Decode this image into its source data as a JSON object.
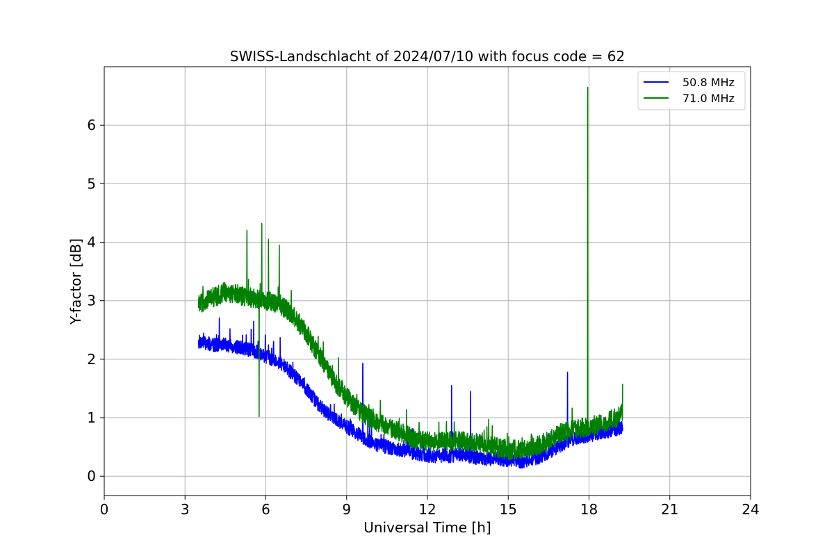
{
  "chart_data": {
    "type": "line",
    "title": "SWISS-Landschlacht of 2024/07/10 with focus code = 62",
    "xlabel": "Universal Time [h]",
    "ylabel": "Y-factor [dB]",
    "xlim": [
      0,
      24
    ],
    "ylim": [
      -0.33,
      7.0
    ],
    "x_ticks": [
      0,
      3,
      6,
      9,
      12,
      15,
      18,
      21,
      24
    ],
    "y_ticks": [
      0,
      1,
      2,
      3,
      4,
      5,
      6
    ],
    "grid": true,
    "legend_position": "top-right",
    "series": [
      {
        "name": "50.8 MHz",
        "color": "#0000ff",
        "x": [
          3.5,
          4.0,
          4.5,
          5.0,
          5.5,
          5.8,
          6.0,
          6.5,
          7.0,
          7.5,
          8.0,
          8.5,
          9.0,
          9.5,
          10.0,
          10.5,
          11.0,
          11.5,
          12.0,
          12.5,
          13.0,
          13.5,
          14.0,
          14.5,
          15.0,
          15.5,
          16.0,
          16.5,
          17.0,
          17.5,
          18.0,
          18.5,
          19.0,
          19.25
        ],
        "y": [
          2.3,
          2.25,
          2.25,
          2.2,
          2.15,
          2.1,
          2.05,
          1.95,
          1.75,
          1.5,
          1.2,
          1.0,
          0.85,
          0.7,
          0.55,
          0.5,
          0.45,
          0.4,
          0.35,
          0.35,
          0.35,
          0.35,
          0.3,
          0.3,
          0.28,
          0.25,
          0.3,
          0.4,
          0.55,
          0.65,
          0.7,
          0.75,
          0.8,
          0.85
        ],
        "spikes": [
          {
            "x": 5.55,
            "y": 2.65
          },
          {
            "x": 9.6,
            "y": 1.93
          },
          {
            "x": 12.9,
            "y": 1.55
          },
          {
            "x": 13.6,
            "y": 1.45
          },
          {
            "x": 17.2,
            "y": 1.78
          }
        ]
      },
      {
        "name": "71.0 MHz",
        "color": "#008000",
        "x": [
          3.5,
          4.0,
          4.5,
          5.0,
          5.5,
          6.0,
          6.5,
          7.0,
          7.5,
          8.0,
          8.5,
          9.0,
          9.5,
          10.0,
          10.5,
          11.0,
          11.5,
          12.0,
          12.5,
          13.0,
          13.5,
          14.0,
          14.5,
          15.0,
          15.5,
          16.0,
          16.5,
          17.0,
          17.5,
          18.0,
          18.5,
          19.0,
          19.25
        ],
        "y": [
          2.95,
          3.05,
          3.15,
          3.1,
          3.05,
          3.0,
          2.95,
          2.75,
          2.45,
          2.05,
          1.65,
          1.35,
          1.1,
          0.95,
          0.85,
          0.75,
          0.65,
          0.6,
          0.6,
          0.6,
          0.6,
          0.55,
          0.5,
          0.45,
          0.45,
          0.5,
          0.6,
          0.75,
          0.8,
          0.85,
          0.9,
          1.0,
          1.1
        ],
        "spikes": [
          {
            "x": 5.3,
            "y": 4.2
          },
          {
            "x": 5.75,
            "y": 1.02
          },
          {
            "x": 5.85,
            "y": 4.32
          },
          {
            "x": 6.1,
            "y": 4.05
          },
          {
            "x": 6.5,
            "y": 3.95
          },
          {
            "x": 17.95,
            "y": 6.65
          },
          {
            "x": 19.25,
            "y": 1.58
          }
        ]
      }
    ]
  }
}
